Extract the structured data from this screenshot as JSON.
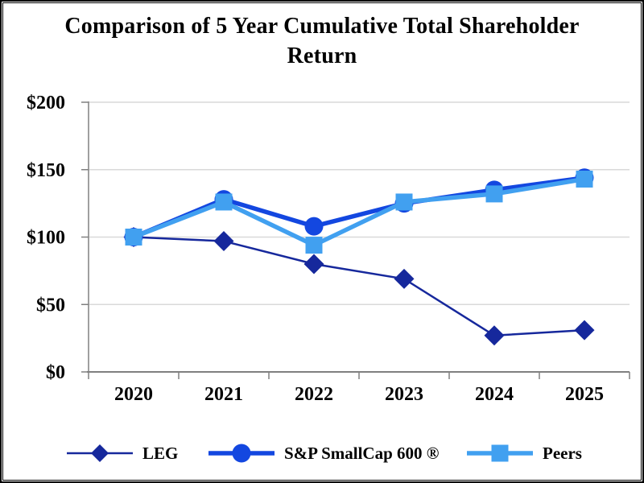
{
  "chart_data": {
    "type": "line",
    "title": "Comparison of 5 Year Cumulative Total Shareholder Return",
    "categories": [
      "2020",
      "2021",
      "2022",
      "2023",
      "2024",
      "2025"
    ],
    "series": [
      {
        "name": "LEG",
        "marker": "diamond",
        "color": "#16289C",
        "line_width": 2.5,
        "values": [
          100,
          97,
          80,
          69,
          27,
          31
        ]
      },
      {
        "name": "S&P SmallCap 600 ®",
        "marker": "circle",
        "color": "#1347E0",
        "line_width": 5.5,
        "values": [
          100,
          128,
          108,
          125,
          135,
          144
        ]
      },
      {
        "name": "Peers",
        "marker": "square",
        "color": "#41A0F0",
        "line_width": 5.5,
        "values": [
          100,
          126,
          94,
          126,
          132,
          143
        ]
      }
    ],
    "xlabel": "",
    "ylabel": "",
    "ylim": [
      0,
      200
    ],
    "ytick_step": 50,
    "ytick_labels": [
      "$0",
      "$50",
      "$100",
      "$150",
      "$200"
    ],
    "grid": true,
    "legend_position": "bottom",
    "colors": {
      "gridline": "#D9D9D9",
      "axis": "#808080",
      "text": "#000000",
      "background": "#FFFFFF",
      "border": "#000000"
    }
  }
}
